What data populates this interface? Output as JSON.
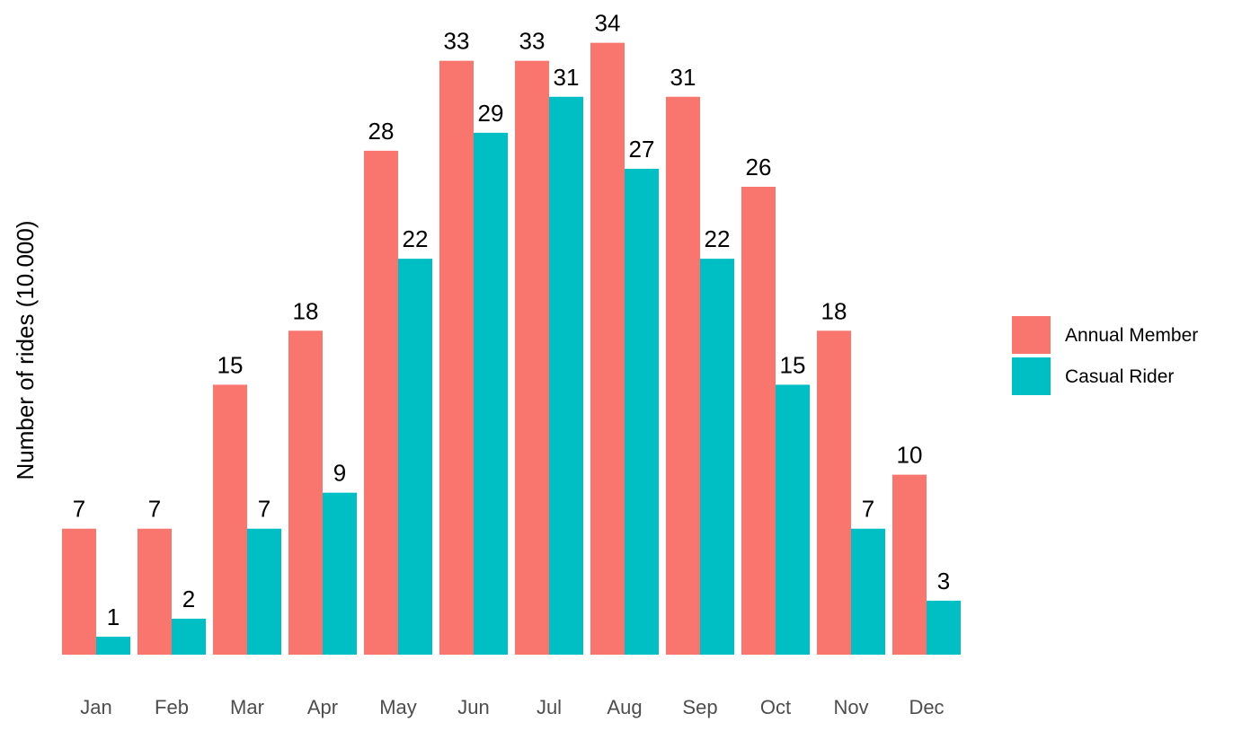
{
  "chart_data": {
    "type": "bar",
    "title": "",
    "xlabel": "",
    "ylabel": "Number of rides (10.000)",
    "ylim": [
      0,
      34
    ],
    "grid": false,
    "legend_position": "right",
    "categories": [
      "Jan",
      "Feb",
      "Mar",
      "Apr",
      "May",
      "Jun",
      "Jul",
      "Aug",
      "Sep",
      "Oct",
      "Nov",
      "Dec"
    ],
    "series": [
      {
        "name": "Annual Member",
        "color": "#F8766D",
        "values": [
          7,
          7,
          15,
          18,
          28,
          33,
          33,
          34,
          31,
          26,
          18,
          10
        ]
      },
      {
        "name": "Casual Rider",
        "color": "#00BFC4",
        "values": [
          1,
          2,
          7,
          9,
          22,
          29,
          31,
          27,
          22,
          15,
          7,
          3
        ]
      }
    ]
  }
}
